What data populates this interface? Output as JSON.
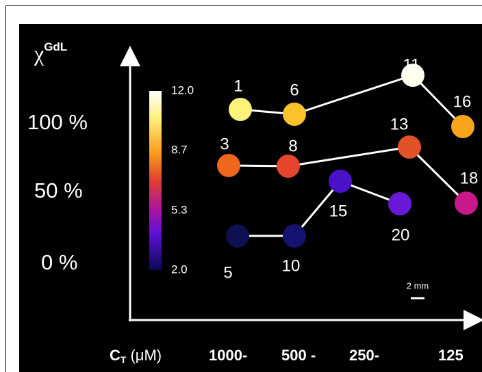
{
  "y_axis": {
    "symbol": "χ",
    "superscript": "GdL",
    "ticks": [
      "100 %",
      "50 %",
      "0 %"
    ]
  },
  "colorbar": {
    "ticks": [
      "12.0",
      "8.7",
      "5.3",
      "2.0"
    ]
  },
  "samples": [
    {
      "label": "1"
    },
    {
      "label": "6"
    },
    {
      "label": "11"
    },
    {
      "label": "16"
    },
    {
      "label": "3"
    },
    {
      "label": "8"
    },
    {
      "label": "13"
    },
    {
      "label": "18"
    },
    {
      "label": "5"
    },
    {
      "label": "10"
    },
    {
      "label": "15"
    },
    {
      "label": "20"
    }
  ],
  "x_axis": {
    "symbol": "C",
    "subscript": "T",
    "unit": "(μM)",
    "ticks": [
      "1000-",
      "500 -",
      "250-",
      "125"
    ]
  },
  "scale_bar": "2 mm"
}
